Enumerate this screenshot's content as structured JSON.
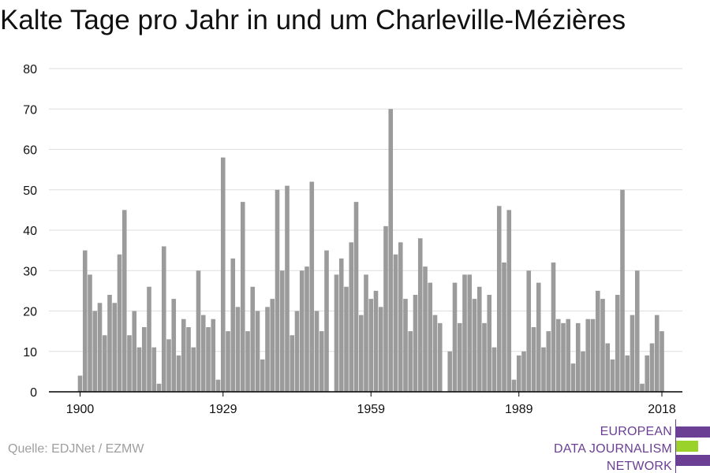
{
  "title": "Kalte Tage pro Jahr in und um Charleville-Mézières",
  "source": "Quelle: EDJNet / EZMW",
  "logo": {
    "lines": [
      "EUROPEAN",
      "DATA JOURNALISM",
      "NETWORK"
    ],
    "colors": {
      "purple": "#6b3f93",
      "green": "#9bd22a"
    }
  },
  "colors": {
    "bar": "#9b9b9b",
    "grid": "#dddddd",
    "axis": "#000000",
    "text": "#111111"
  },
  "chart_data": {
    "type": "bar",
    "title": "Kalte Tage pro Jahr in und um Charleville-Mézières",
    "xlabel": "",
    "ylabel": "",
    "ylim": [
      0,
      80
    ],
    "yticks": [
      0,
      10,
      20,
      30,
      40,
      50,
      60,
      70,
      80
    ],
    "xticks": [
      1900,
      1929,
      1959,
      1989,
      2018
    ],
    "grid": true,
    "x_start": 1900,
    "categories": [
      1900,
      1901,
      1902,
      1903,
      1904,
      1905,
      1906,
      1907,
      1908,
      1909,
      1910,
      1911,
      1912,
      1913,
      1914,
      1915,
      1916,
      1917,
      1918,
      1919,
      1920,
      1921,
      1922,
      1923,
      1924,
      1925,
      1926,
      1927,
      1928,
      1929,
      1930,
      1931,
      1932,
      1933,
      1934,
      1935,
      1936,
      1937,
      1938,
      1939,
      1940,
      1941,
      1942,
      1943,
      1944,
      1945,
      1946,
      1947,
      1948,
      1949,
      1950,
      1951,
      1952,
      1953,
      1954,
      1955,
      1956,
      1957,
      1958,
      1959,
      1960,
      1961,
      1962,
      1963,
      1964,
      1965,
      1966,
      1967,
      1968,
      1969,
      1970,
      1971,
      1972,
      1973,
      1974,
      1975,
      1976,
      1977,
      1978,
      1979,
      1980,
      1981,
      1982,
      1983,
      1984,
      1985,
      1986,
      1987,
      1988,
      1989,
      1990,
      1991,
      1992,
      1993,
      1994,
      1995,
      1996,
      1997,
      1998,
      1999,
      2000,
      2001,
      2002,
      2003,
      2004,
      2005,
      2006,
      2007,
      2008,
      2009,
      2010,
      2011,
      2012,
      2013,
      2014,
      2015,
      2016,
      2017,
      2018
    ],
    "values": [
      4,
      35,
      29,
      20,
      22,
      14,
      24,
      22,
      34,
      45,
      14,
      20,
      11,
      16,
      26,
      11,
      2,
      36,
      13,
      23,
      9,
      18,
      16,
      11,
      30,
      19,
      16,
      18,
      3,
      58,
      15,
      33,
      21,
      47,
      15,
      26,
      20,
      8,
      21,
      23,
      50,
      30,
      51,
      14,
      20,
      30,
      31,
      52,
      20,
      15,
      35,
      0,
      29,
      33,
      26,
      37,
      47,
      19,
      29,
      23,
      25,
      21,
      41,
      70,
      34,
      37,
      23,
      15,
      24,
      38,
      31,
      27,
      19,
      17,
      0,
      10,
      27,
      17,
      29,
      29,
      23,
      26,
      17,
      24,
      11,
      46,
      32,
      45,
      3,
      9,
      10,
      30,
      16,
      27,
      11,
      15,
      32,
      18,
      17,
      18,
      7,
      17,
      10,
      18,
      18,
      25,
      23,
      12,
      8,
      24,
      50,
      9,
      19,
      30,
      2,
      9,
      12,
      19,
      15
    ]
  }
}
